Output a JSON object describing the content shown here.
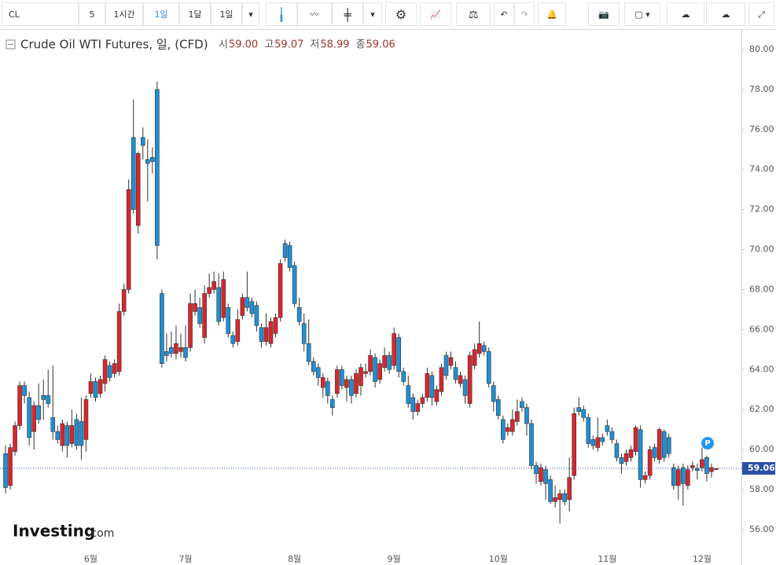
{
  "toolbar": {
    "symbol": "CL",
    "items": [
      "5",
      "1시간",
      "1일",
      "1달",
      "1일"
    ]
  },
  "chart_data": {
    "type": "candlestick",
    "title": "Crude Oil WTI Futures, 일, (CFD)",
    "ohlc_legend": [
      {
        "label": "시",
        "value": "59.00"
      },
      {
        "label": "고",
        "value": "59.07"
      },
      {
        "label": "저",
        "value": "58.99"
      },
      {
        "label": "종",
        "value": "59.06"
      }
    ],
    "up_color": "#d9262c",
    "down_color": "#1e90d6",
    "last_price": {
      "value": 59.06,
      "label": "59.06"
    },
    "annotation": "P",
    "brand": {
      "name": "Investing",
      "suffix": ".com"
    },
    "ylim": [
      54.78,
      80.9
    ],
    "yticks": [
      {
        "value": 56,
        "label": "56.00"
      },
      {
        "value": 58,
        "label": "58.00"
      },
      {
        "value": 60,
        "label": "60.00"
      },
      {
        "value": 62,
        "label": "62.00"
      },
      {
        "value": 64,
        "label": "64.00"
      },
      {
        "value": 66,
        "label": "66.00"
      },
      {
        "value": 68,
        "label": "68.00"
      },
      {
        "value": 70,
        "label": "70.00"
      },
      {
        "value": 72,
        "label": "72.00"
      },
      {
        "value": 74,
        "label": "74.00"
      },
      {
        "value": 76,
        "label": "76.00"
      },
      {
        "value": 78,
        "label": "78.00"
      },
      {
        "value": 80,
        "label": "80.00"
      }
    ],
    "categories": [
      null,
      null,
      null,
      null,
      null,
      null,
      null,
      null,
      null,
      null,
      null,
      null,
      null,
      null,
      null,
      null,
      null,
      null,
      "6월",
      null,
      null,
      null,
      null,
      null,
      null,
      null,
      null,
      null,
      null,
      null,
      null,
      null,
      null,
      null,
      null,
      null,
      null,
      null,
      "7월",
      null,
      null,
      null,
      null,
      null,
      null,
      null,
      null,
      null,
      null,
      null,
      null,
      null,
      null,
      null,
      null,
      null,
      null,
      null,
      null,
      null,
      null,
      "8월",
      null,
      null,
      null,
      null,
      null,
      null,
      null,
      null,
      null,
      null,
      null,
      null,
      null,
      null,
      null,
      null,
      null,
      null,
      null,
      null,
      "9월",
      null,
      null,
      null,
      null,
      null,
      null,
      null,
      null,
      null,
      null,
      null,
      null,
      null,
      null,
      null,
      null,
      null,
      null,
      null,
      null,
      null,
      "10월",
      null,
      null,
      null,
      null,
      null,
      null,
      null,
      null,
      null,
      null,
      null,
      null,
      null,
      null,
      null,
      null,
      null,
      null,
      null,
      null,
      null,
      null,
      "11월",
      null,
      null,
      null,
      null,
      null,
      null,
      null,
      null,
      null,
      null,
      null,
      null,
      null,
      null,
      null,
      null,
      null,
      null,
      null,
      "12월",
      null,
      null,
      null
    ],
    "open": [
      59.8,
      58.2,
      59.9,
      61.2,
      63.2,
      62.6,
      60.9,
      62.2,
      62.7,
      62.7,
      61.6,
      60.9,
      60.2,
      61.2,
      60.3,
      61.5,
      61.4,
      60.5,
      62.8,
      63.4,
      62.8,
      63.3,
      64.2,
      63.8,
      63.9,
      66.9,
      68.0,
      75.6,
      71.2,
      75.6,
      74.5,
      74.6,
      78.0,
      67.8,
      64.9,
      65.1,
      64.8,
      64.9,
      65.1,
      65.1,
      66.9,
      67.1,
      65.6,
      67.8,
      68.0,
      68.1,
      66.6,
      67.1,
      65.7,
      65.4,
      66.7,
      67.6,
      67.4,
      67.2,
      66.1,
      65.4,
      65.3,
      65.8,
      66.6,
      70.3,
      70.2,
      69.2,
      67.1,
      66.3,
      65.3,
      64.4,
      64.1,
      63.1,
      63.4,
      62.5,
      62.8,
      64.0,
      63.1,
      63.5,
      62.8,
      63.2,
      63.8,
      63.9,
      64.6,
      63.5,
      64.1,
      64.7,
      64.2,
      65.6,
      63.9,
      63.2,
      62.6,
      61.9,
      62.3,
      62.6,
      63.7,
      62.4,
      62.9,
      64.7,
      64.2,
      64.1,
      63.3,
      63.5,
      62.3,
      64.2,
      64.8,
      65.2,
      64.9,
      63.2,
      62.5,
      61.5,
      60.9,
      60.9,
      61.4,
      62.4,
      62.1,
      61.3,
      59.2,
      58.4,
      59.0,
      58.5,
      57.4,
      57.5,
      57.8,
      57.5,
      58.7,
      62.1,
      62.0,
      61.6,
      60.5,
      60.1,
      60.6,
      61.2,
      60.9,
      60.3,
      59.6,
      59.4,
      59.6,
      59.9,
      61.0,
      58.5,
      58.7,
      60.1,
      59.5,
      60.9,
      60.6,
      59.1,
      58.2,
      59.1,
      58.2,
      59.1,
      59.05,
      59.1,
      59.6,
      58.9,
      59.0
    ],
    "high": [
      60.2,
      60.3,
      61.4,
      63.4,
      63.4,
      62.9,
      62.4,
      63.3,
      63.5,
      64.0,
      64.2,
      61.2,
      61.5,
      61.4,
      62.0,
      61.8,
      62.6,
      62.7,
      63.8,
      63.6,
      63.7,
      64.7,
      64.4,
      64.5,
      67.3,
      68.3,
      73.5,
      77.5,
      74.9,
      76.1,
      75.5,
      75.1,
      78.4,
      68.0,
      65.8,
      65.9,
      66.2,
      65.8,
      66.2,
      67.8,
      68.0,
      67.6,
      68.2,
      68.8,
      68.9,
      68.8,
      68.9,
      67.3,
      65.9,
      67.0,
      67.8,
      68.9,
      67.6,
      67.4,
      66.3,
      66.8,
      66.6,
      66.8,
      69.5,
      70.5,
      70.4,
      69.4,
      67.6,
      66.8,
      66.5,
      64.6,
      64.3,
      63.8,
      63.6,
      62.7,
      64.2,
      64.2,
      63.7,
      63.7,
      64.0,
      64.3,
      64.3,
      65.0,
      64.8,
      64.5,
      65.1,
      64.9,
      66.1,
      65.8,
      64.1,
      63.7,
      62.8,
      62.5,
      62.8,
      64.1,
      63.9,
      63.2,
      64.3,
      64.9,
      64.9,
      64.4,
      63.9,
      63.7,
      64.9,
      65.3,
      66.4,
      65.4,
      65.1,
      63.4,
      62.7,
      61.7,
      61.3,
      62.0,
      62.5,
      62.6,
      62.3,
      61.5,
      59.4,
      59.3,
      59.2,
      58.7,
      58.2,
      58.0,
      58.0,
      59.6,
      62.1,
      62.6,
      62.2,
      61.8,
      60.7,
      61.6,
      60.8,
      61.5,
      61.1,
      60.5,
      59.8,
      60.0,
      60.2,
      61.2,
      61.2,
      58.9,
      60.2,
      60.3,
      61.1,
      61.0,
      60.8,
      59.3,
      59.2,
      59.3,
      59.2,
      59.4,
      59.3,
      60.1,
      59.7,
      59.3,
      59.07
    ],
    "low": [
      57.8,
      58.0,
      59.7,
      61.0,
      62.3,
      60.2,
      60.0,
      61.3,
      61.5,
      62.1,
      60.5,
      60.3,
      59.9,
      59.6,
      60.1,
      60.0,
      59.5,
      59.9,
      62.6,
      62.4,
      62.6,
      62.9,
      63.4,
      63.6,
      63.7,
      66.7,
      67.8,
      71.8,
      70.8,
      74.5,
      72.4,
      73.8,
      69.5,
      64.1,
      64.4,
      64.6,
      64.5,
      64.6,
      64.4,
      64.9,
      66.7,
      66.1,
      65.3,
      67.6,
      67.8,
      66.2,
      66.4,
      65.6,
      65.1,
      65.2,
      66.5,
      66.9,
      66.6,
      65.9,
      65.1,
      65.2,
      65.1,
      65.6,
      66.4,
      69.4,
      68.9,
      67.1,
      66.2,
      64.9,
      64.2,
      63.7,
      63.2,
      62.6,
      62.3,
      61.7,
      62.6,
      63.0,
      62.4,
      62.3,
      62.6,
      62.7,
      63.6,
      63.7,
      63.1,
      63.3,
      63.9,
      63.8,
      64.0,
      63.6,
      63.2,
      62.1,
      61.5,
      61.7,
      62.1,
      62.4,
      62.2,
      62.2,
      62.7,
      63.5,
      64.0,
      63.3,
      63.1,
      62.3,
      62.1,
      64.0,
      64.6,
      64.7,
      63.1,
      61.9,
      61.5,
      60.3,
      60.7,
      60.7,
      61.2,
      61.9,
      60.7,
      59.0,
      58.3,
      58.2,
      57.5,
      57.3,
      57.1,
      56.3,
      57.2,
      56.9,
      58.5,
      61.7,
      61.4,
      60.1,
      60.0,
      59.9,
      60.2,
      60.7,
      60.3,
      59.4,
      58.8,
      59.2,
      59.4,
      59.7,
      58.1,
      58.3,
      58.5,
      59.4,
      59.3,
      59.4,
      59.6,
      58.0,
      57.5,
      57.2,
      58.0,
      58.9,
      58.5,
      58.9,
      58.4,
      58.6,
      58.99
    ],
    "close": [
      58.1,
      60.1,
      61.2,
      63.2,
      62.7,
      60.6,
      62.2,
      61.5,
      62.5,
      62.3,
      60.9,
      60.5,
      61.3,
      60.2,
      61.2,
      60.2,
      60.2,
      62.5,
      63.4,
      62.6,
      63.5,
      64.5,
      63.6,
      64.3,
      66.9,
      68.0,
      73.0,
      72.0,
      74.8,
      75.2,
      74.3,
      74.4,
      70.2,
      64.3,
      64.7,
      64.8,
      65.3,
      65.1,
      64.6,
      67.3,
      67.3,
      66.3,
      67.8,
      68.1,
      68.4,
      66.4,
      68.5,
      65.8,
      65.3,
      66.5,
      67.6,
      67.1,
      66.8,
      66.2,
      65.4,
      66.1,
      66.4,
      66.6,
      69.3,
      69.6,
      69.1,
      67.3,
      66.4,
      65.3,
      64.4,
      63.9,
      63.6,
      63.6,
      62.7,
      62.1,
      64.0,
      63.2,
      63.5,
      62.7,
      63.8,
      64.1,
      63.9,
      64.7,
      63.4,
      64.3,
      64.7,
      64.0,
      65.8,
      63.9,
      63.4,
      62.3,
      61.9,
      62.3,
      62.6,
      63.8,
      62.6,
      63.0,
      64.1,
      63.7,
      64.6,
      63.5,
      63.7,
      62.7,
      64.7,
      65.0,
      65.3,
      64.9,
      63.3,
      62.4,
      61.7,
      60.5,
      61.1,
      61.5,
      61.9,
      62.1,
      61.3,
      59.2,
      58.8,
      59.1,
      58.3,
      57.4,
      57.6,
      57.8,
      57.4,
      58.6,
      61.8,
      61.9,
      61.6,
      60.3,
      60.2,
      60.6,
      60.4,
      60.9,
      60.5,
      59.6,
      59.3,
      59.8,
      60.0,
      61.1,
      58.5,
      58.7,
      60.0,
      59.6,
      61.0,
      59.6,
      59.8,
      58.2,
      59.0,
      58.3,
      59.0,
      59.2,
      58.95,
      59.5,
      58.8,
      59.1,
      59.06
    ]
  }
}
